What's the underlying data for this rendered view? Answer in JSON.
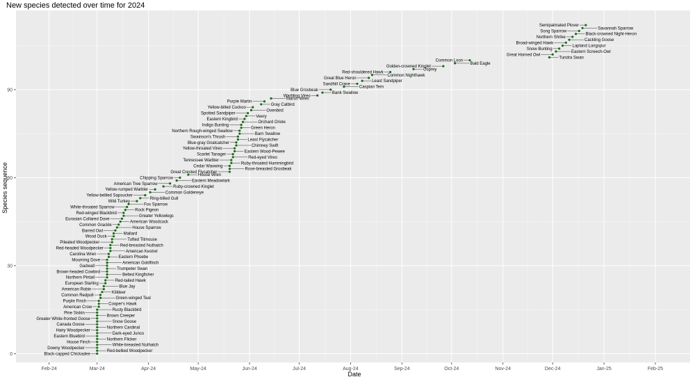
{
  "chart_data": {
    "type": "scatter",
    "title": "New species detected over time for 2024",
    "xlabel": "Date",
    "ylabel": "Species sequence",
    "x_range": [
      "2024-01-12",
      "2025-02-22"
    ],
    "ylim": [
      -3,
      117
    ],
    "x_ticks": [
      {
        "date": "2024-02-01",
        "label": "Feb-24"
      },
      {
        "date": "2024-03-01",
        "label": "Mar-24"
      },
      {
        "date": "2024-04-01",
        "label": "Apr-24"
      },
      {
        "date": "2024-05-01",
        "label": "May-24"
      },
      {
        "date": "2024-06-01",
        "label": "Jun-24"
      },
      {
        "date": "2024-07-01",
        "label": "Jul-24"
      },
      {
        "date": "2024-08-01",
        "label": "Aug-24"
      },
      {
        "date": "2024-09-01",
        "label": "Sep-24"
      },
      {
        "date": "2024-10-01",
        "label": "Oct-24"
      },
      {
        "date": "2024-11-01",
        "label": "Nov-24"
      },
      {
        "date": "2024-12-01",
        "label": "Dec-24"
      },
      {
        "date": "2025-01-01",
        "label": "Jan-25"
      },
      {
        "date": "2025-02-01",
        "label": "Feb-25"
      }
    ],
    "y_ticks": [
      0,
      30,
      60,
      90
    ],
    "grid": true,
    "point_color": "#1a6b1a",
    "points": [
      {
        "x": "2024-03-01",
        "y": 0,
        "label": "Black-capped Chickadee"
      },
      {
        "x": "2024-03-01",
        "y": 1,
        "label": "Red-bellied Woodpecker"
      },
      {
        "x": "2024-03-01",
        "y": 2,
        "label": "Downy Woodpecker"
      },
      {
        "x": "2024-03-01",
        "y": 3,
        "label": "White-breasted Nuthatch"
      },
      {
        "x": "2024-03-01",
        "y": 4,
        "label": "House Finch"
      },
      {
        "x": "2024-03-01",
        "y": 5,
        "label": "Northern Flicker"
      },
      {
        "x": "2024-03-01",
        "y": 6,
        "label": "Eastern Bluebird"
      },
      {
        "x": "2024-03-01",
        "y": 7,
        "label": "Dark-eyed Junco"
      },
      {
        "x": "2024-03-01",
        "y": 8,
        "label": "Hairy Woodpecker"
      },
      {
        "x": "2024-03-01",
        "y": 9,
        "label": "Northern Cardinal"
      },
      {
        "x": "2024-03-01",
        "y": 10,
        "label": "Canada Goose"
      },
      {
        "x": "2024-03-01",
        "y": 11,
        "label": "Snow Goose"
      },
      {
        "x": "2024-03-01",
        "y": 12,
        "label": "Greater White-fronted Goose"
      },
      {
        "x": "2024-03-01",
        "y": 13,
        "label": "Brown Creeper"
      },
      {
        "x": "2024-03-01",
        "y": 14,
        "label": "Pine Siskin"
      },
      {
        "x": "2024-03-01",
        "y": 15,
        "label": "Rusty Blackbird"
      },
      {
        "x": "2024-03-02",
        "y": 16,
        "label": "American Crow"
      },
      {
        "x": "2024-03-02",
        "y": 17,
        "label": "Cooper's Hawk"
      },
      {
        "x": "2024-03-02",
        "y": 18,
        "label": "Purple Finch"
      },
      {
        "x": "2024-03-03",
        "y": 19,
        "label": "Green-winged Teal"
      },
      {
        "x": "2024-03-03",
        "y": 20,
        "label": "Common Redpoll"
      },
      {
        "x": "2024-03-04",
        "y": 21,
        "label": "Killdeer"
      },
      {
        "x": "2024-03-05",
        "y": 22,
        "label": "American Robin"
      },
      {
        "x": "2024-03-05",
        "y": 23,
        "label": "Blue Jay"
      },
      {
        "x": "2024-03-06",
        "y": 24,
        "label": "European Starling"
      },
      {
        "x": "2024-03-06",
        "y": 25,
        "label": "Red-tailed Hawk"
      },
      {
        "x": "2024-03-07",
        "y": 26,
        "label": "Northern Pintail"
      },
      {
        "x": "2024-03-07",
        "y": 27,
        "label": "Belted Kingfisher"
      },
      {
        "x": "2024-03-07",
        "y": 28,
        "label": "Brown-headed Cowbird"
      },
      {
        "x": "2024-03-07",
        "y": 29,
        "label": "Trumpeter Swan"
      },
      {
        "x": "2024-03-07",
        "y": 30,
        "label": "Gadwall"
      },
      {
        "x": "2024-03-07",
        "y": 31,
        "label": "American Goldfinch"
      },
      {
        "x": "2024-03-07",
        "y": 32,
        "label": "Mourning Dove"
      },
      {
        "x": "2024-03-08",
        "y": 33,
        "label": "Eastern Phoebe"
      },
      {
        "x": "2024-03-08",
        "y": 34,
        "label": "Carolina Wren"
      },
      {
        "x": "2024-03-09",
        "y": 35,
        "label": "American Kestrel"
      },
      {
        "x": "2024-03-09",
        "y": 36,
        "label": "Red-headed Woodpecker"
      },
      {
        "x": "2024-03-09",
        "y": 37,
        "label": "Red-breasted Nuthatch"
      },
      {
        "x": "2024-03-10",
        "y": 38,
        "label": "Pileated Woodpecker"
      },
      {
        "x": "2024-03-10",
        "y": 39,
        "label": "Tufted Titmouse"
      },
      {
        "x": "2024-03-11",
        "y": 40,
        "label": "Wood Duck"
      },
      {
        "x": "2024-03-11",
        "y": 41,
        "label": "Mallard"
      },
      {
        "x": "2024-03-12",
        "y": 42,
        "label": "Barred Owl"
      },
      {
        "x": "2024-03-13",
        "y": 43,
        "label": "House Sparrow"
      },
      {
        "x": "2024-03-14",
        "y": 44,
        "label": "Common Grackle"
      },
      {
        "x": "2024-03-15",
        "y": 45,
        "label": "American Woodcock"
      },
      {
        "x": "2024-03-16",
        "y": 46,
        "label": "Eurasian Collared Dove"
      },
      {
        "x": "2024-03-17",
        "y": 47,
        "label": "Greater Yellowlegs"
      },
      {
        "x": "2024-03-17",
        "y": 48,
        "label": "Red-winged Blackbird"
      },
      {
        "x": "2024-03-18",
        "y": 49,
        "label": "Rock Pigeon"
      },
      {
        "x": "2024-03-19",
        "y": 50,
        "label": "White-throated Sparrow"
      },
      {
        "x": "2024-03-20",
        "y": 51,
        "label": "Fox Sparrow"
      },
      {
        "x": "2024-03-25",
        "y": 52,
        "label": "Wild Turkey"
      },
      {
        "x": "2024-03-27",
        "y": 53,
        "label": "Ring-billed Gull"
      },
      {
        "x": "2024-03-30",
        "y": 54,
        "label": "Yellow-bellied Sapsucker"
      },
      {
        "x": "2024-04-02",
        "y": 55,
        "label": "Common Goldeneye"
      },
      {
        "x": "2024-04-05",
        "y": 56,
        "label": "Yellow-rumped Warbler"
      },
      {
        "x": "2024-04-10",
        "y": 57,
        "label": "Ruby-crowned Kinglet"
      },
      {
        "x": "2024-04-14",
        "y": 58,
        "label": "American Tree Sparrow"
      },
      {
        "x": "2024-04-18",
        "y": 59,
        "label": "Eastern Meadowlark"
      },
      {
        "x": "2024-04-20",
        "y": 60,
        "label": "Chipping Sparrow"
      },
      {
        "x": "2024-04-25",
        "y": 61,
        "label": "House Wren"
      },
      {
        "x": "2024-05-20",
        "y": 62,
        "label": "Great Crested Flycatcher"
      },
      {
        "x": "2024-05-20",
        "y": 63,
        "label": "Rose-breasted Grosbeak"
      },
      {
        "x": "2024-05-20",
        "y": 64,
        "label": "Cedar Waxwing"
      },
      {
        "x": "2024-05-21",
        "y": 65,
        "label": "Ruby-throated Hummingbird"
      },
      {
        "x": "2024-05-21",
        "y": 66,
        "label": "Tennessee Warbler"
      },
      {
        "x": "2024-05-22",
        "y": 67,
        "label": "Red-eyed Vireo"
      },
      {
        "x": "2024-05-22",
        "y": 68,
        "label": "Scarlet Tanager"
      },
      {
        "x": "2024-05-23",
        "y": 69,
        "label": "Eastern Wood-Pewee"
      },
      {
        "x": "2024-05-23",
        "y": 70,
        "label": "Yellow-throated Vireo"
      },
      {
        "x": "2024-05-24",
        "y": 71,
        "label": "Chimney Swift"
      },
      {
        "x": "2024-05-24",
        "y": 72,
        "label": "Blue-gray Gnatcatcher"
      },
      {
        "x": "2024-05-25",
        "y": 73,
        "label": "Least Flycatcher"
      },
      {
        "x": "2024-05-25",
        "y": 74,
        "label": "Swainson's Thrush"
      },
      {
        "x": "2024-05-26",
        "y": 75,
        "label": "Barn Swallow"
      },
      {
        "x": "2024-05-26",
        "y": 76,
        "label": "Northern Rough-winged Swallow"
      },
      {
        "x": "2024-05-27",
        "y": 77,
        "label": "Green Heron"
      },
      {
        "x": "2024-05-27",
        "y": 78,
        "label": "Indigo Bunting"
      },
      {
        "x": "2024-05-28",
        "y": 79,
        "label": "Orchard Oriole"
      },
      {
        "x": "2024-05-29",
        "y": 80,
        "label": "Eastern Kingbird"
      },
      {
        "x": "2024-05-30",
        "y": 81,
        "label": "Veery"
      },
      {
        "x": "2024-05-31",
        "y": 82,
        "label": "Spotted Sandpiper"
      },
      {
        "x": "2024-06-02",
        "y": 83,
        "label": "Ovenbird"
      },
      {
        "x": "2024-06-03",
        "y": 84,
        "label": "Yellow-billed Cuckoo"
      },
      {
        "x": "2024-06-08",
        "y": 85,
        "label": "Gray Catbird"
      },
      {
        "x": "2024-06-10",
        "y": 86,
        "label": "Purple Martin"
      },
      {
        "x": "2024-06-14",
        "y": 87,
        "label": "Marsh Wren"
      },
      {
        "x": "2024-07-12",
        "y": 88,
        "label": "Warbling Vireo"
      },
      {
        "x": "2024-07-15",
        "y": 89,
        "label": "Bank Swallow"
      },
      {
        "x": "2024-07-20",
        "y": 90,
        "label": "Blue Grosbeak"
      },
      {
        "x": "2024-07-28",
        "y": 91,
        "label": "Caspian Tern"
      },
      {
        "x": "2024-08-05",
        "y": 92,
        "label": "Sandhill Crane"
      },
      {
        "x": "2024-08-08",
        "y": 93,
        "label": "Least Sandpiper"
      },
      {
        "x": "2024-08-12",
        "y": 94,
        "label": "Great Blue Heron"
      },
      {
        "x": "2024-08-14",
        "y": 95,
        "label": "Common Nighthawk"
      },
      {
        "x": "2024-08-25",
        "y": 96,
        "label": "Red-shouldered Hawk"
      },
      {
        "x": "2024-09-08",
        "y": 97,
        "label": "Osprey"
      },
      {
        "x": "2024-09-26",
        "y": 98,
        "label": "Golden-crowned Kinglet"
      },
      {
        "x": "2024-10-03",
        "y": 99,
        "label": "Bald Eagle"
      },
      {
        "x": "2024-10-12",
        "y": 100,
        "label": "Common Loon"
      },
      {
        "x": "2024-11-29",
        "y": 101,
        "label": "Tundra Swan"
      },
      {
        "x": "2024-12-01",
        "y": 102,
        "label": "Great Horned Owl"
      },
      {
        "x": "2024-12-03",
        "y": 103,
        "label": "Eastern Screech-Owl"
      },
      {
        "x": "2024-12-05",
        "y": 104,
        "label": "Snow Bunting"
      },
      {
        "x": "2024-12-07",
        "y": 105,
        "label": "Lapland Longspur"
      },
      {
        "x": "2024-12-09",
        "y": 106,
        "label": "Broad-winged Hawk"
      },
      {
        "x": "2024-12-11",
        "y": 107,
        "label": "Cackling Goose"
      },
      {
        "x": "2024-12-13",
        "y": 108,
        "label": "Northern Shrike"
      },
      {
        "x": "2024-12-15",
        "y": 109,
        "label": "Black-crowned Night-Heron"
      },
      {
        "x": "2024-12-17",
        "y": 110,
        "label": "Song Sparrow"
      },
      {
        "x": "2024-12-19",
        "y": 111,
        "label": "Savannah Sparrow"
      },
      {
        "x": "2024-12-21",
        "y": 112,
        "label": "Semipalmated Plover"
      }
    ]
  }
}
